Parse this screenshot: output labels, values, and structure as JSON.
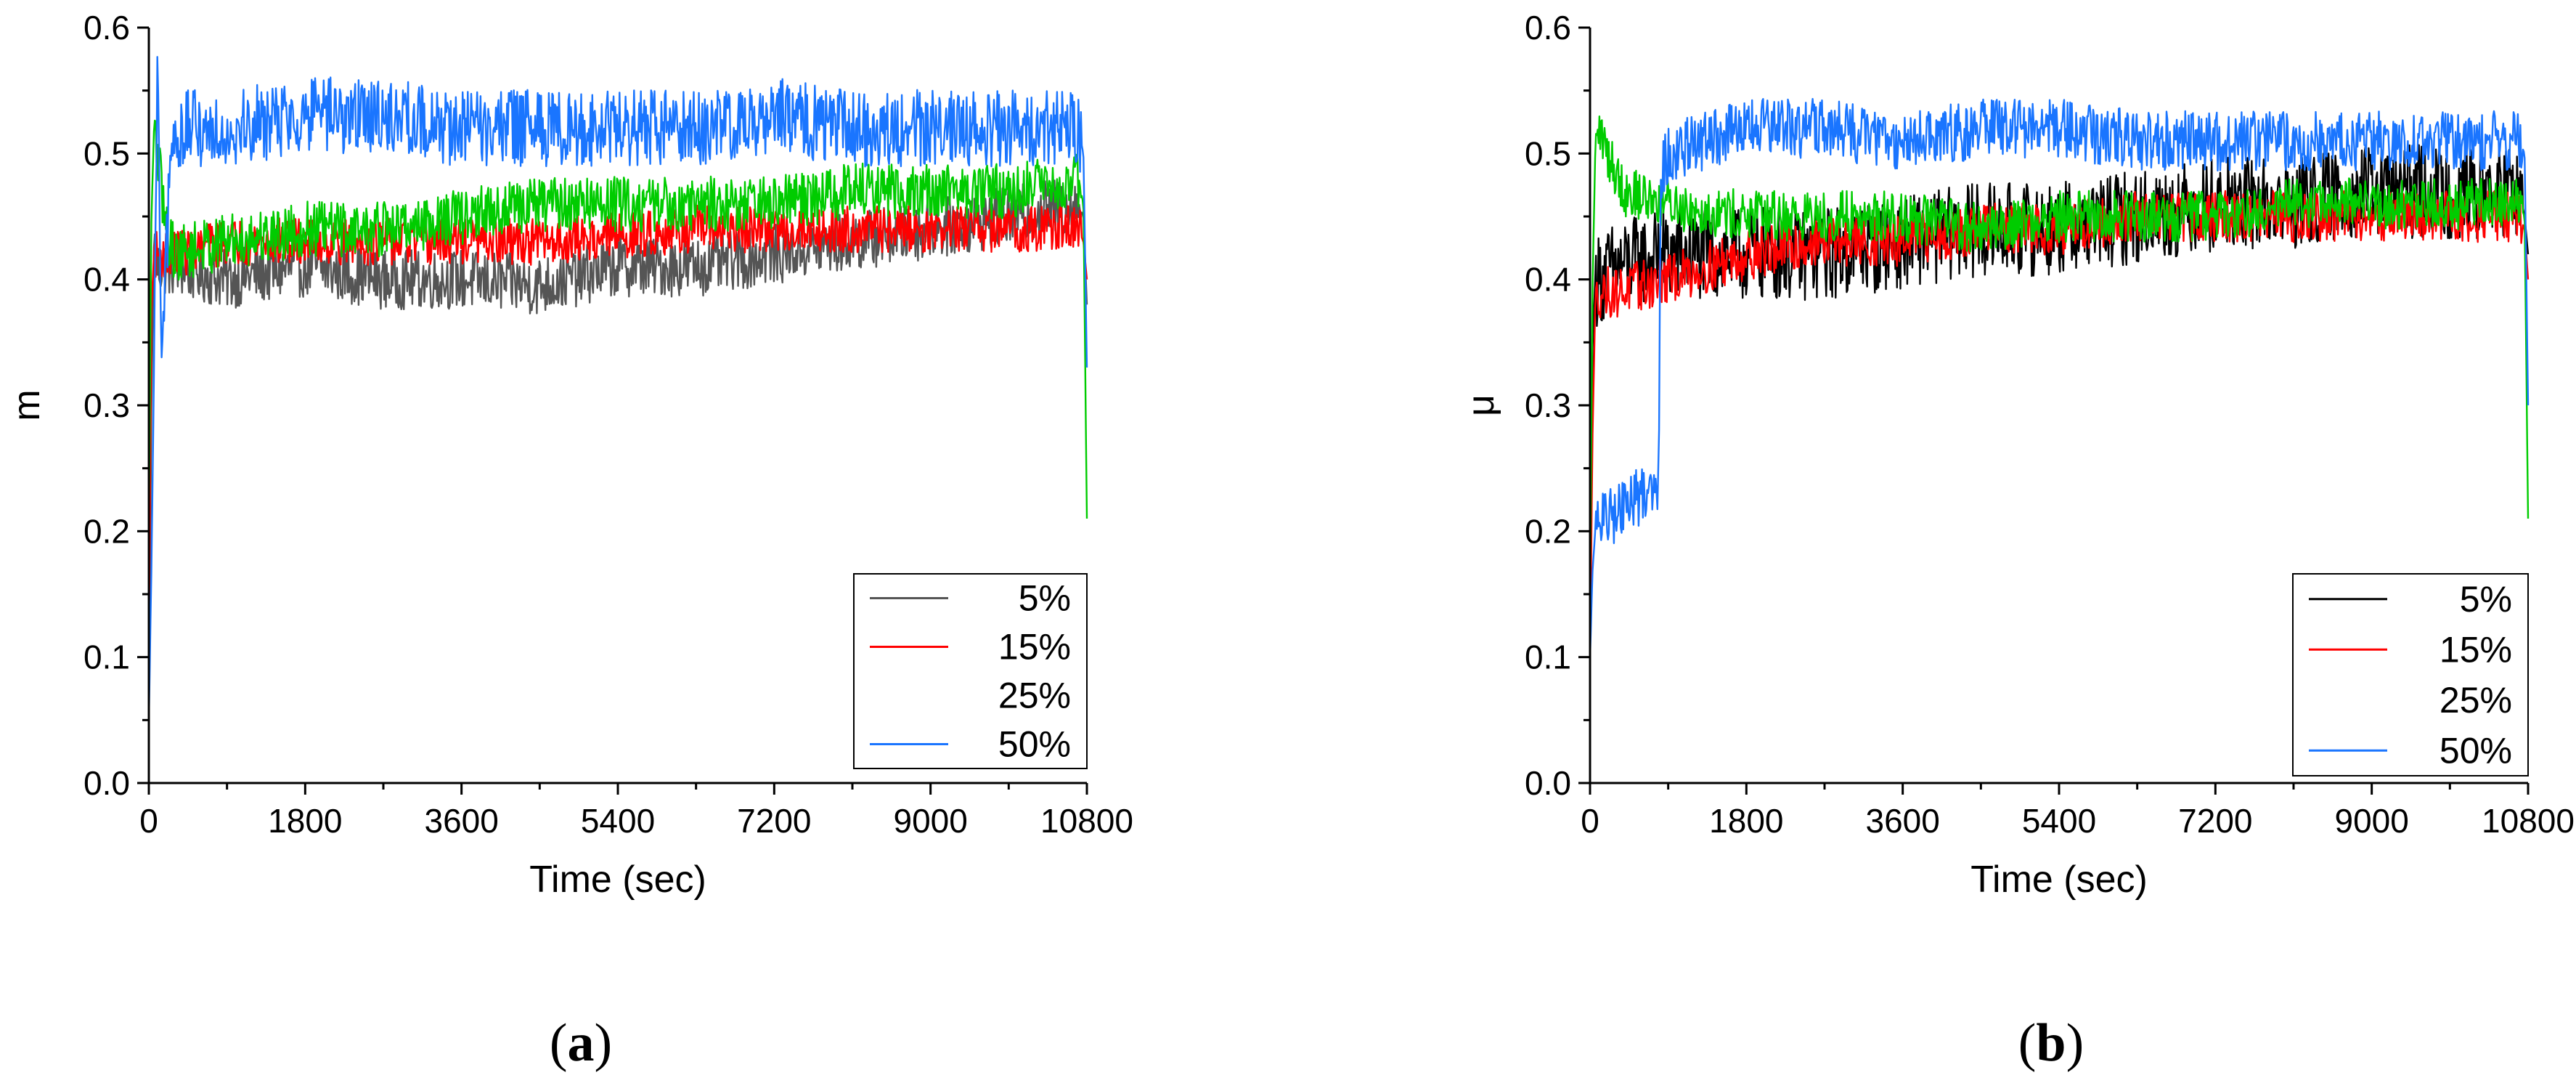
{
  "chart_data": [
    {
      "type": "line",
      "panel_label": "(a)",
      "panel_letter": "a",
      "xlabel": "Time (sec)",
      "ylabel": "m",
      "xlim": [
        0,
        10800
      ],
      "ylim": [
        0,
        0.6
      ],
      "xticks": [
        0,
        1800,
        3600,
        5400,
        7200,
        9000,
        10800
      ],
      "yticks": [
        0.0,
        0.1,
        0.2,
        0.3,
        0.4,
        0.5,
        0.6
      ],
      "ytick_labels": [
        "0.0",
        "0.1",
        "0.2",
        "0.3",
        "0.4",
        "0.5",
        "0.6"
      ],
      "grid": false,
      "legend_position": "bottom-right",
      "series": [
        {
          "name": "5%",
          "color": "#555555",
          "show_legend_line": true,
          "x": [
            0,
            30,
            60,
            100,
            300,
            900,
            1800,
            2700,
            3600,
            4500,
            5400,
            6300,
            7200,
            8100,
            9000,
            9900,
            10700,
            10760,
            10800
          ],
          "y": [
            0.05,
            0.3,
            0.43,
            0.41,
            0.41,
            0.4,
            0.41,
            0.4,
            0.4,
            0.395,
            0.41,
            0.41,
            0.42,
            0.43,
            0.44,
            0.45,
            0.46,
            0.45,
            0.38
          ],
          "noise": 0.014
        },
        {
          "name": "15%",
          "color": "#ff0000",
          "show_legend_line": true,
          "x": [
            0,
            30,
            60,
            100,
            300,
            900,
            1800,
            2700,
            3600,
            4500,
            5400,
            6300,
            7200,
            8100,
            9000,
            9900,
            10700,
            10760,
            10800
          ],
          "y": [
            0.1,
            0.38,
            0.42,
            0.42,
            0.42,
            0.43,
            0.43,
            0.43,
            0.43,
            0.43,
            0.435,
            0.44,
            0.44,
            0.44,
            0.44,
            0.44,
            0.44,
            0.43,
            0.4
          ],
          "noise": 0.011
        },
        {
          "name": "25%",
          "color": "#00cc00",
          "show_legend_line": false,
          "x": [
            0,
            30,
            60,
            100,
            200,
            300,
            900,
            1800,
            2700,
            3600,
            4500,
            5400,
            6300,
            7200,
            8100,
            9000,
            9900,
            10700,
            10760,
            10800
          ],
          "y": [
            0.2,
            0.45,
            0.52,
            0.5,
            0.44,
            0.42,
            0.43,
            0.44,
            0.44,
            0.45,
            0.46,
            0.46,
            0.46,
            0.46,
            0.47,
            0.47,
            0.47,
            0.48,
            0.46,
            0.21
          ],
          "noise": 0.013
        },
        {
          "name": "50%",
          "color": "#1a75ff",
          "show_legend_line": true,
          "x": [
            0,
            30,
            60,
            100,
            150,
            250,
            400,
            900,
            1800,
            2700,
            3600,
            4500,
            5400,
            6300,
            7200,
            8100,
            9000,
            9900,
            10700,
            10760,
            10800
          ],
          "y": [
            0.05,
            0.17,
            0.33,
            0.57,
            0.32,
            0.5,
            0.52,
            0.52,
            0.53,
            0.53,
            0.52,
            0.52,
            0.52,
            0.52,
            0.53,
            0.52,
            0.52,
            0.52,
            0.52,
            0.5,
            0.33
          ],
          "noise": 0.018
        }
      ]
    },
    {
      "type": "line",
      "panel_label": "(b)",
      "panel_letter": "b",
      "xlabel": "Time (sec)",
      "ylabel": "μ",
      "xlim": [
        0,
        10800
      ],
      "ylim": [
        0,
        0.6
      ],
      "xticks": [
        0,
        1800,
        3600,
        5400,
        7200,
        9000,
        10800
      ],
      "yticks": [
        0.0,
        0.1,
        0.2,
        0.3,
        0.4,
        0.5,
        0.6
      ],
      "ytick_labels": [
        "0.0",
        "0.1",
        "0.2",
        "0.3",
        "0.4",
        "0.5",
        "0.6"
      ],
      "grid": false,
      "legend_position": "bottom-right",
      "series": [
        {
          "name": "5%",
          "color": "#000000",
          "show_legend_line": true,
          "x": [
            0,
            30,
            60,
            100,
            300,
            900,
            1800,
            2700,
            3600,
            4500,
            5400,
            6300,
            7200,
            8100,
            9000,
            9900,
            10700,
            10760,
            10800
          ],
          "y": [
            0.1,
            0.35,
            0.4,
            0.4,
            0.41,
            0.42,
            0.42,
            0.42,
            0.43,
            0.44,
            0.44,
            0.45,
            0.46,
            0.46,
            0.47,
            0.47,
            0.47,
            0.45,
            0.42
          ],
          "noise": 0.022
        },
        {
          "name": "15%",
          "color": "#ff0000",
          "show_legend_line": true,
          "x": [
            0,
            30,
            60,
            100,
            300,
            900,
            1800,
            2700,
            3600,
            4500,
            5400,
            6300,
            7200,
            8100,
            9000,
            9900,
            10700,
            10760,
            10800
          ],
          "y": [
            0.1,
            0.28,
            0.38,
            0.39,
            0.39,
            0.4,
            0.42,
            0.43,
            0.43,
            0.44,
            0.44,
            0.45,
            0.45,
            0.45,
            0.45,
            0.45,
            0.45,
            0.44,
            0.4
          ],
          "noise": 0.012
        },
        {
          "name": "25%",
          "color": "#00cc00",
          "show_legend_line": false,
          "x": [
            0,
            30,
            60,
            100,
            200,
            400,
            900,
            1800,
            2700,
            3600,
            4500,
            5400,
            6300,
            7200,
            8100,
            9000,
            9900,
            10700,
            10760,
            10800
          ],
          "y": [
            0.15,
            0.4,
            0.5,
            0.52,
            0.5,
            0.47,
            0.46,
            0.45,
            0.45,
            0.45,
            0.44,
            0.45,
            0.45,
            0.45,
            0.46,
            0.46,
            0.46,
            0.46,
            0.45,
            0.21
          ],
          "noise": 0.012
        },
        {
          "name": "50%",
          "color": "#1a75ff",
          "show_legend_line": true,
          "x": [
            0,
            30,
            60,
            100,
            200,
            400,
            600,
            790,
            810,
            900,
            1800,
            2700,
            3600,
            4500,
            5400,
            6300,
            7200,
            8100,
            9000,
            9900,
            10700,
            10760,
            10800
          ],
          "y": [
            0.1,
            0.17,
            0.2,
            0.21,
            0.21,
            0.22,
            0.23,
            0.24,
            0.48,
            0.5,
            0.52,
            0.52,
            0.51,
            0.52,
            0.52,
            0.51,
            0.51,
            0.51,
            0.51,
            0.51,
            0.51,
            0.5,
            0.3
          ],
          "noise": 0.014
        }
      ]
    }
  ]
}
